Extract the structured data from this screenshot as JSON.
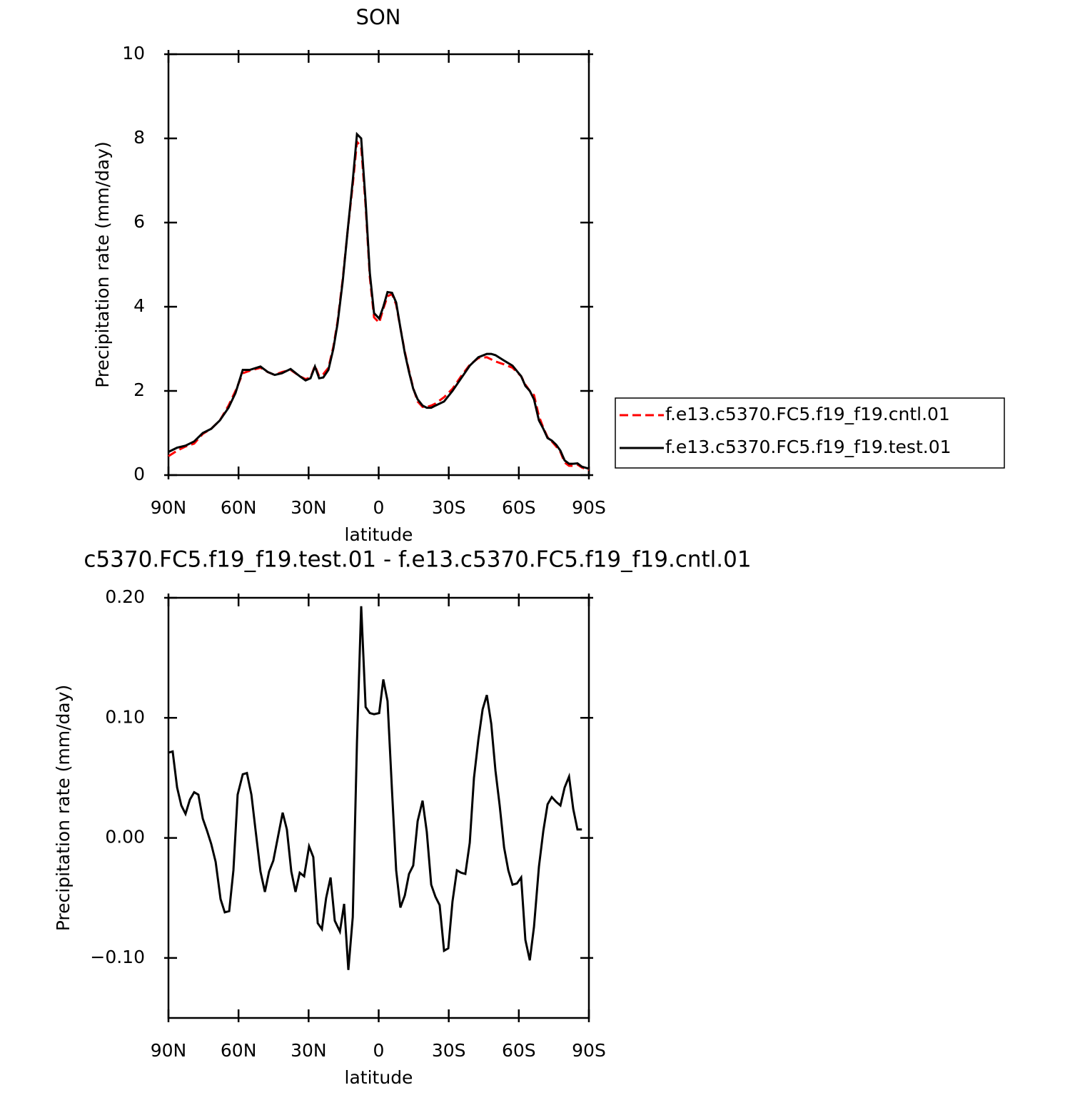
{
  "chart_data": [
    {
      "type": "line",
      "title": "SON",
      "xlabel": "latitude",
      "ylabel": "Precipitation rate (mm/day)",
      "xlim": [
        90,
        -90
      ],
      "ylim": [
        0,
        10
      ],
      "xticks": [
        {
          "value": 90,
          "label": "90N"
        },
        {
          "value": 60,
          "label": "60N"
        },
        {
          "value": 30,
          "label": "30N"
        },
        0,
        {
          "value": -30,
          "label": "30S"
        },
        {
          "value": -60,
          "label": "60S"
        },
        {
          "value": -90,
          "label": "90S"
        }
      ],
      "yticks": [
        0,
        2,
        4,
        6,
        8,
        10
      ],
      "legend": "right",
      "x": [
        90,
        86.3,
        82.7,
        79.0,
        75.3,
        71.7,
        68.0,
        64.3,
        61.3,
        58.2,
        55.2,
        50.6,
        47.5,
        44.5,
        41.4,
        37.7,
        33.8,
        31.3,
        29.2,
        27.3,
        25.5,
        23.7,
        21.5,
        19.4,
        17.6,
        15.4,
        13.3,
        11.1,
        9.3,
        7.5,
        5.6,
        3.8,
        2.0,
        -0.2,
        -2.0,
        -3.8,
        -5.7,
        -7.5,
        -9.3,
        -11.2,
        -13.0,
        -14.8,
        -16.7,
        -18.8,
        -20.6,
        -22.5,
        -24.3,
        -28.0,
        -31.6,
        -35.3,
        -39.0,
        -42.7,
        -46.3,
        -48.2,
        -50.0,
        -53.7,
        -57.3,
        -61.0,
        -62.8,
        -64.7,
        -66.5,
        -68.6,
        -70.5,
        -72.3,
        -74.1,
        -76.0,
        -77.8,
        -79.6,
        -81.5,
        -83.3,
        -85.1,
        -87.0,
        -90.0
      ],
      "series": [
        {
          "name": "f.e13.c5370.FC5.f19_f19.cntl.01",
          "color": "#ff0000",
          "linestyle": "dashed",
          "values": [
            0.45,
            0.58,
            0.68,
            0.75,
            0.98,
            1.1,
            1.3,
            1.65,
            2.0,
            2.42,
            2.48,
            2.55,
            2.45,
            2.38,
            2.45,
            2.5,
            2.35,
            2.28,
            2.32,
            2.6,
            2.35,
            2.4,
            2.55,
            3.05,
            3.65,
            4.65,
            5.8,
            6.9,
            7.92,
            7.8,
            6.4,
            4.7,
            3.75,
            3.62,
            3.95,
            4.25,
            4.3,
            4.05,
            3.5,
            2.93,
            2.48,
            2.07,
            1.75,
            1.62,
            1.62,
            1.65,
            1.7,
            1.85,
            2.05,
            2.35,
            2.62,
            2.78,
            2.8,
            2.75,
            2.7,
            2.63,
            2.55,
            2.35,
            2.15,
            2.0,
            1.9,
            1.4,
            1.12,
            0.9,
            0.8,
            0.68,
            0.55,
            0.3,
            0.22,
            0.22,
            0.25,
            0.18,
            0.12
          ]
        },
        {
          "name": "f.e13.c5370.FC5.f19_f19.test.01",
          "color": "#000000",
          "linestyle": "solid",
          "values": [
            0.55,
            0.65,
            0.7,
            0.8,
            1.0,
            1.1,
            1.3,
            1.6,
            1.95,
            2.5,
            2.5,
            2.58,
            2.45,
            2.38,
            2.42,
            2.52,
            2.35,
            2.25,
            2.3,
            2.58,
            2.3,
            2.32,
            2.5,
            3.0,
            3.6,
            4.6,
            5.8,
            7.0,
            8.1,
            8.0,
            6.5,
            4.8,
            3.85,
            3.72,
            4.0,
            4.35,
            4.33,
            4.1,
            3.5,
            2.9,
            2.45,
            2.05,
            1.8,
            1.65,
            1.6,
            1.6,
            1.65,
            1.75,
            2.0,
            2.3,
            2.6,
            2.8,
            2.88,
            2.88,
            2.85,
            2.72,
            2.6,
            2.35,
            2.12,
            2.0,
            1.8,
            1.3,
            1.1,
            0.88,
            0.82,
            0.72,
            0.58,
            0.35,
            0.27,
            0.27,
            0.28,
            0.2,
            0.15
          ]
        }
      ]
    },
    {
      "type": "line",
      "title": "c5370.FC5.f19_f19.test.01 - f.e13.c5370.FC5.f19_f19.cntl.01",
      "xlabel": "latitude",
      "ylabel": "Precipitation rate (mm/day)",
      "xlim": [
        90,
        -90
      ],
      "ylim": [
        -0.15,
        0.2
      ],
      "xticks": [
        {
          "value": 90,
          "label": "90N"
        },
        {
          "value": 60,
          "label": "60N"
        },
        {
          "value": 30,
          "label": "30N"
        },
        0,
        {
          "value": -30,
          "label": "30S"
        },
        {
          "value": -60,
          "label": "60S"
        },
        {
          "value": -90,
          "label": "90S"
        }
      ],
      "yticks": [
        {
          "value": -0.1,
          "label": "−0.10"
        },
        {
          "value": 0,
          "label": "0.00"
        },
        {
          "value": 0.1,
          "label": "0.10"
        },
        {
          "value": 0.2,
          "label": "0.20"
        }
      ],
      "color": "#000000",
      "x": [
        90.0,
        88.2,
        86.3,
        84.5,
        82.7,
        80.8,
        79.0,
        77.2,
        75.3,
        73.5,
        71.7,
        69.8,
        67.7,
        65.9,
        64.0,
        62.2,
        60.4,
        58.2,
        56.4,
        54.5,
        52.7,
        50.6,
        48.7,
        46.9,
        45.1,
        42.9,
        41.1,
        39.3,
        37.4,
        35.6,
        33.8,
        31.9,
        29.8,
        28.0,
        26.1,
        24.3,
        22.5,
        20.6,
        18.8,
        16.6,
        14.8,
        13.0,
        11.1,
        9.3,
        7.5,
        5.6,
        3.8,
        2.0,
        -0.2,
        -2.0,
        -3.8,
        -5.7,
        -7.5,
        -9.3,
        -11.2,
        -13.0,
        -14.8,
        -16.7,
        -18.8,
        -20.6,
        -22.5,
        -24.3,
        -26.1,
        -28.0,
        -29.8,
        -31.6,
        -33.5,
        -35.3,
        -37.1,
        -39.0,
        -40.8,
        -42.7,
        -44.5,
        -46.3,
        -48.2,
        -50.0,
        -51.8,
        -53.7,
        -55.5,
        -57.3,
        -59.2,
        -61.0,
        -62.8,
        -64.7,
        -66.5,
        -68.6,
        -70.5,
        -72.3,
        -74.1,
        -76.0,
        -77.8,
        -79.6,
        -81.5,
        -83.3,
        -85.1,
        -87.0
      ],
      "values": [
        0.071,
        0.072,
        0.042,
        0.027,
        0.02,
        0.032,
        0.038,
        0.036,
        0.016,
        0.006,
        -0.005,
        -0.02,
        -0.051,
        -0.062,
        -0.061,
        -0.027,
        0.036,
        0.053,
        0.054,
        0.036,
        0.006,
        -0.028,
        -0.045,
        -0.028,
        -0.019,
        0.003,
        0.021,
        0.007,
        -0.028,
        -0.045,
        -0.029,
        -0.032,
        -0.007,
        -0.016,
        -0.071,
        -0.076,
        -0.05,
        -0.033,
        -0.069,
        -0.078,
        -0.055,
        -0.11,
        -0.066,
        0.08,
        0.193,
        0.109,
        0.104,
        0.103,
        0.104,
        0.132,
        0.114,
        0.039,
        -0.027,
        -0.058,
        -0.048,
        -0.03,
        -0.023,
        0.014,
        0.031,
        0.005,
        -0.039,
        -0.049,
        -0.056,
        -0.094,
        -0.092,
        -0.053,
        -0.027,
        -0.029,
        -0.03,
        -0.004,
        0.05,
        0.082,
        0.107,
        0.119,
        0.095,
        0.056,
        0.027,
        -0.008,
        -0.027,
        -0.039,
        -0.038,
        -0.033,
        -0.085,
        -0.102,
        -0.074,
        -0.024,
        0.006,
        0.028,
        0.034,
        0.03,
        0.027,
        0.042,
        0.051,
        0.024,
        0.007,
        0.007
      ]
    }
  ]
}
